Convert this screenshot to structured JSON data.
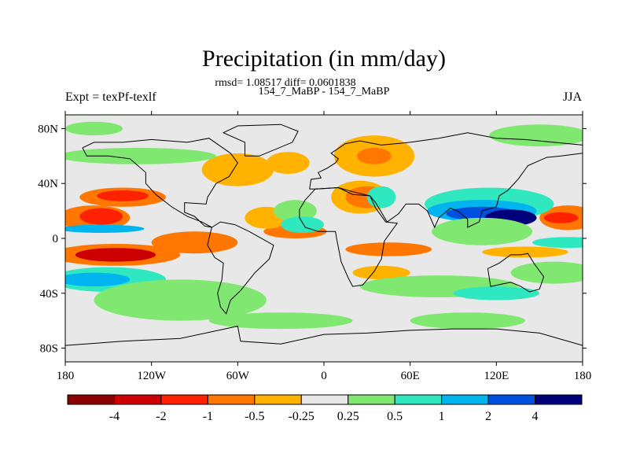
{
  "chart_data": {
    "type": "heatmap",
    "title": "Precipitation (in mm/day)",
    "subtitle_line1": "rmsd= 1.08517 diff= 0.0601838",
    "subtitle_line2": "154_7_MaBP - 154_7_MaBP",
    "left_label": "Expt = texPf-texlf",
    "right_label": "JJA",
    "x_range": [
      -180,
      180
    ],
    "y_range": [
      -90,
      90
    ],
    "x_ticks": [
      {
        "value": -180,
        "label": "180"
      },
      {
        "value": -120,
        "label": "120W"
      },
      {
        "value": -60,
        "label": "60W"
      },
      {
        "value": 0,
        "label": "0"
      },
      {
        "value": 60,
        "label": "60E"
      },
      {
        "value": 120,
        "label": "120E"
      },
      {
        "value": 180,
        "label": "180"
      }
    ],
    "y_ticks": [
      {
        "value": 80,
        "label": "80N"
      },
      {
        "value": 40,
        "label": "40N"
      },
      {
        "value": 0,
        "label": "0"
      },
      {
        "value": -40,
        "label": "40S"
      },
      {
        "value": -80,
        "label": "80S"
      }
    ],
    "colorbar": {
      "colors": [
        "#8b0000",
        "#cc0000",
        "#ff2200",
        "#ff7700",
        "#ffb300",
        "#e8e8e8",
        "#80e870",
        "#30e8c0",
        "#00b4f0",
        "#0050e0",
        "#00007a"
      ],
      "tick_labels": [
        "-4",
        "-2",
        "-1",
        "-0.5",
        "-0.25",
        "0.25",
        "0.5",
        "1",
        "2",
        "4"
      ]
    },
    "features": [
      {
        "lon": -160,
        "lat": 15,
        "rx": 25,
        "ry": 9,
        "level": 3
      },
      {
        "lon": -155,
        "lat": 16,
        "rx": 15,
        "ry": 6,
        "level": 2
      },
      {
        "lon": -140,
        "lat": 30,
        "rx": 30,
        "ry": 7,
        "level": 3
      },
      {
        "lon": -140,
        "lat": 31,
        "rx": 18,
        "ry": 4,
        "level": 2
      },
      {
        "lon": -145,
        "lat": -12,
        "rx": 45,
        "ry": 8,
        "level": 3
      },
      {
        "lon": -145,
        "lat": -12,
        "rx": 28,
        "ry": 5,
        "level": 1
      },
      {
        "lon": -90,
        "lat": -3,
        "rx": 30,
        "ry": 8,
        "level": 3
      },
      {
        "lon": -60,
        "lat": 50,
        "rx": 25,
        "ry": 12,
        "level": 4
      },
      {
        "lon": -25,
        "lat": 55,
        "rx": 15,
        "ry": 8,
        "level": 4
      },
      {
        "lon": -20,
        "lat": 5,
        "rx": 22,
        "ry": 5,
        "level": 3
      },
      {
        "lon": -40,
        "lat": 15,
        "rx": 15,
        "ry": 8,
        "level": 4
      },
      {
        "lon": 35,
        "lat": 60,
        "rx": 28,
        "ry": 15,
        "level": 4
      },
      {
        "lon": 35,
        "lat": 60,
        "rx": 12,
        "ry": 6,
        "level": 3
      },
      {
        "lon": 25,
        "lat": 30,
        "rx": 20,
        "ry": 12,
        "level": 4
      },
      {
        "lon": 30,
        "lat": 30,
        "rx": 15,
        "ry": 8,
        "level": 3
      },
      {
        "lon": 45,
        "lat": -8,
        "rx": 30,
        "ry": 5,
        "level": 3
      },
      {
        "lon": 40,
        "lat": -25,
        "rx": 20,
        "ry": 5,
        "level": 4
      },
      {
        "lon": 170,
        "lat": 15,
        "rx": 20,
        "ry": 9,
        "level": 3
      },
      {
        "lon": 165,
        "lat": 15,
        "rx": 12,
        "ry": 4,
        "level": 2
      },
      {
        "lon": 140,
        "lat": -10,
        "rx": 30,
        "ry": 4,
        "level": 4
      }
    ],
    "wet_features": [
      {
        "lon": -150,
        "lat": -30,
        "rx": 40,
        "ry": 9,
        "level": 7
      },
      {
        "lon": -160,
        "lat": -30,
        "rx": 25,
        "ry": 5,
        "level": 8
      },
      {
        "lon": -155,
        "lat": 7,
        "rx": 30,
        "ry": 3,
        "level": 8
      },
      {
        "lon": -130,
        "lat": 60,
        "rx": 55,
        "ry": 6,
        "level": 6
      },
      {
        "lon": -160,
        "lat": 80,
        "rx": 20,
        "ry": 5,
        "level": 6
      },
      {
        "lon": -100,
        "lat": -45,
        "rx": 60,
        "ry": 15,
        "level": 6
      },
      {
        "lon": -20,
        "lat": 20,
        "rx": 15,
        "ry": 8,
        "level": 6
      },
      {
        "lon": -15,
        "lat": 10,
        "rx": 15,
        "ry": 6,
        "level": 7
      },
      {
        "lon": 40,
        "lat": 30,
        "rx": 10,
        "ry": 8,
        "level": 7
      },
      {
        "lon": 115,
        "lat": 25,
        "rx": 45,
        "ry": 12,
        "level": 7
      },
      {
        "lon": 110,
        "lat": 20,
        "rx": 38,
        "ry": 8,
        "level": 8
      },
      {
        "lon": 110,
        "lat": 18,
        "rx": 25,
        "ry": 5,
        "level": 9
      },
      {
        "lon": 130,
        "lat": 15,
        "rx": 18,
        "ry": 6,
        "level": 10
      },
      {
        "lon": 110,
        "lat": 5,
        "rx": 35,
        "ry": 10,
        "level": 6
      },
      {
        "lon": 150,
        "lat": 75,
        "rx": 35,
        "ry": 8,
        "level": 6
      },
      {
        "lon": 80,
        "lat": -35,
        "rx": 55,
        "ry": 8,
        "level": 6
      },
      {
        "lon": 120,
        "lat": -40,
        "rx": 30,
        "ry": 5,
        "level": 7
      },
      {
        "lon": 160,
        "lat": -25,
        "rx": 30,
        "ry": 8,
        "level": 6
      },
      {
        "lon": 170,
        "lat": -3,
        "rx": 25,
        "ry": 4,
        "level": 7
      },
      {
        "lon": -30,
        "lat": -60,
        "rx": 50,
        "ry": 6,
        "level": 6
      },
      {
        "lon": 100,
        "lat": -60,
        "rx": 40,
        "ry": 6,
        "level": 6
      }
    ]
  }
}
